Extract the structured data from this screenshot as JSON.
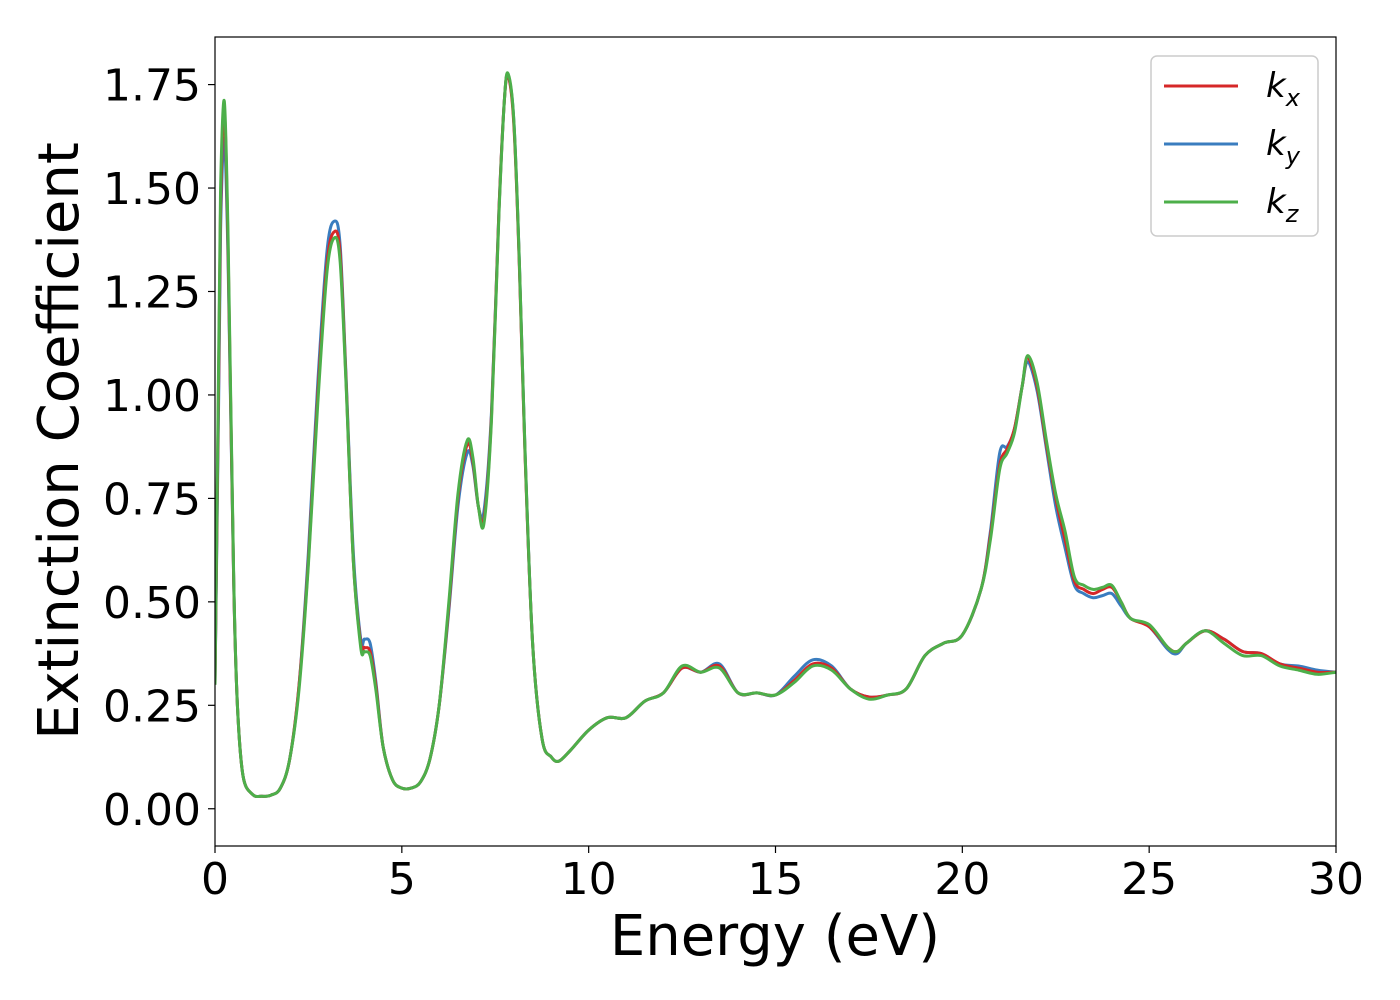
{
  "chart_data": {
    "type": "line",
    "xlabel": "Energy (eV)",
    "ylabel": "Extinction Coefficient",
    "xlim": [
      0,
      30
    ],
    "ylim": [
      -0.09,
      1.865
    ],
    "xticks": [
      0,
      5,
      10,
      15,
      20,
      25,
      30
    ],
    "xtick_labels": [
      "0",
      "5",
      "10",
      "15",
      "20",
      "25",
      "30"
    ],
    "yticks": [
      0.0,
      0.25,
      0.5,
      0.75,
      1.0,
      1.25,
      1.5,
      1.75
    ],
    "ytick_labels": [
      "0.00",
      "0.25",
      "0.50",
      "0.75",
      "1.00",
      "1.25",
      "1.50",
      "1.75"
    ],
    "grid": false,
    "legend_position": "top-right",
    "x": [
      0.0,
      0.1,
      0.15,
      0.25,
      0.35,
      0.5,
      0.6,
      0.75,
      1.0,
      1.25,
      1.5,
      1.75,
      2.0,
      2.25,
      2.5,
      2.75,
      3.0,
      3.2,
      3.35,
      3.5,
      3.7,
      3.9,
      4.0,
      4.15,
      4.3,
      4.5,
      4.75,
      5.0,
      5.25,
      5.5,
      5.75,
      6.0,
      6.25,
      6.5,
      6.75,
      6.9,
      7.05,
      7.2,
      7.4,
      7.6,
      7.75,
      7.85,
      8.0,
      8.15,
      8.3,
      8.5,
      8.75,
      9.0,
      9.2,
      9.5,
      10.0,
      10.5,
      11.0,
      11.5,
      12.0,
      12.5,
      13.0,
      13.5,
      14.0,
      14.5,
      15.0,
      15.5,
      16.0,
      16.5,
      17.0,
      17.5,
      18.0,
      18.5,
      19.0,
      19.5,
      20.0,
      20.5,
      20.75,
      21.0,
      21.2,
      21.4,
      21.6,
      21.75,
      22.0,
      22.25,
      22.5,
      22.75,
      23.0,
      23.25,
      23.5,
      23.75,
      24.0,
      24.25,
      24.5,
      25.0,
      25.5,
      25.75,
      26.0,
      26.5,
      27.0,
      27.5,
      28.0,
      28.5,
      29.0,
      29.5,
      30.0
    ],
    "series": [
      {
        "name": "k_x",
        "label_base": "k",
        "label_sub": "x",
        "color": "#d62728",
        "values": [
          0.3,
          1.05,
          1.45,
          1.69,
          1.35,
          0.55,
          0.25,
          0.08,
          0.035,
          0.03,
          0.033,
          0.05,
          0.12,
          0.3,
          0.6,
          1.0,
          1.32,
          1.395,
          1.34,
          1.05,
          0.6,
          0.4,
          0.39,
          0.38,
          0.3,
          0.15,
          0.07,
          0.05,
          0.05,
          0.065,
          0.12,
          0.25,
          0.48,
          0.75,
          0.88,
          0.84,
          0.73,
          0.7,
          0.95,
          1.45,
          1.72,
          1.77,
          1.65,
          1.3,
          0.85,
          0.4,
          0.17,
          0.125,
          0.115,
          0.14,
          0.19,
          0.22,
          0.22,
          0.26,
          0.28,
          0.34,
          0.33,
          0.345,
          0.28,
          0.28,
          0.275,
          0.31,
          0.35,
          0.34,
          0.29,
          0.27,
          0.275,
          0.29,
          0.37,
          0.4,
          0.42,
          0.53,
          0.66,
          0.83,
          0.87,
          0.92,
          1.02,
          1.09,
          1.02,
          0.88,
          0.75,
          0.65,
          0.55,
          0.53,
          0.52,
          0.53,
          0.535,
          0.5,
          0.46,
          0.44,
          0.39,
          0.38,
          0.4,
          0.43,
          0.41,
          0.38,
          0.375,
          0.35,
          0.34,
          0.33,
          0.33
        ]
      },
      {
        "name": "k_y",
        "label_base": "k",
        "label_sub": "y",
        "color": "#3a7dbf",
        "values": [
          0.3,
          1.0,
          1.4,
          1.62,
          1.32,
          0.55,
          0.25,
          0.08,
          0.035,
          0.03,
          0.033,
          0.05,
          0.12,
          0.3,
          0.62,
          1.03,
          1.35,
          1.42,
          1.36,
          1.06,
          0.62,
          0.41,
          0.41,
          0.4,
          0.31,
          0.15,
          0.07,
          0.05,
          0.05,
          0.065,
          0.12,
          0.25,
          0.47,
          0.73,
          0.86,
          0.83,
          0.73,
          0.72,
          0.96,
          1.45,
          1.72,
          1.77,
          1.66,
          1.31,
          0.86,
          0.4,
          0.17,
          0.125,
          0.115,
          0.14,
          0.19,
          0.22,
          0.22,
          0.26,
          0.28,
          0.34,
          0.33,
          0.35,
          0.28,
          0.28,
          0.275,
          0.32,
          0.36,
          0.345,
          0.29,
          0.27,
          0.275,
          0.29,
          0.37,
          0.4,
          0.42,
          0.53,
          0.67,
          0.86,
          0.875,
          0.92,
          1.02,
          1.08,
          1.01,
          0.87,
          0.73,
          0.63,
          0.54,
          0.52,
          0.51,
          0.515,
          0.52,
          0.49,
          0.46,
          0.44,
          0.385,
          0.375,
          0.4,
          0.43,
          0.41,
          0.38,
          0.375,
          0.35,
          0.345,
          0.335,
          0.33
        ]
      },
      {
        "name": "k_z",
        "label_base": "k",
        "label_sub": "z",
        "color": "#4daf4a",
        "values": [
          0.3,
          1.1,
          1.5,
          1.71,
          1.38,
          0.56,
          0.25,
          0.08,
          0.035,
          0.03,
          0.033,
          0.05,
          0.12,
          0.29,
          0.59,
          0.98,
          1.3,
          1.38,
          1.32,
          1.04,
          0.6,
          0.39,
          0.38,
          0.37,
          0.29,
          0.15,
          0.07,
          0.05,
          0.05,
          0.065,
          0.12,
          0.25,
          0.49,
          0.76,
          0.89,
          0.85,
          0.73,
          0.69,
          0.94,
          1.44,
          1.72,
          1.775,
          1.66,
          1.31,
          0.86,
          0.4,
          0.17,
          0.125,
          0.115,
          0.14,
          0.19,
          0.22,
          0.22,
          0.26,
          0.28,
          0.345,
          0.33,
          0.34,
          0.28,
          0.28,
          0.275,
          0.305,
          0.345,
          0.335,
          0.29,
          0.265,
          0.275,
          0.29,
          0.37,
          0.4,
          0.42,
          0.53,
          0.65,
          0.82,
          0.86,
          0.91,
          1.02,
          1.095,
          1.03,
          0.89,
          0.76,
          0.67,
          0.56,
          0.54,
          0.53,
          0.535,
          0.54,
          0.5,
          0.46,
          0.445,
          0.39,
          0.38,
          0.4,
          0.43,
          0.4,
          0.37,
          0.37,
          0.345,
          0.335,
          0.325,
          0.33
        ]
      }
    ]
  }
}
